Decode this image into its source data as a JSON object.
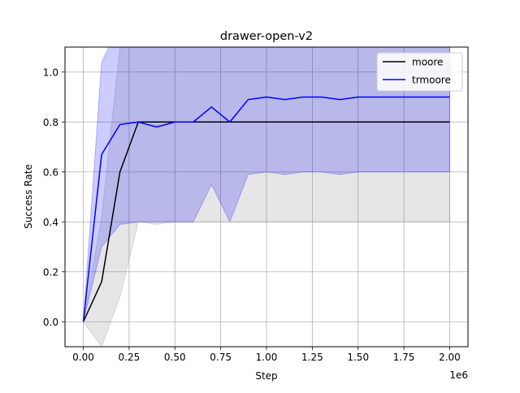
{
  "chart_data": {
    "type": "line",
    "title": "drawer-open-v2",
    "xlabel": "Step",
    "ylabel": "Success Rate",
    "x_offset_text": "1e6",
    "xlim": [
      -0.1,
      2.1
    ],
    "ylim": [
      -0.1,
      1.1
    ],
    "grid": true,
    "legend_position": "top-right",
    "x_ticks": [
      0.0,
      0.25,
      0.5,
      0.75,
      1.0,
      1.25,
      1.5,
      1.75,
      2.0
    ],
    "x_tick_labels": [
      "0.00",
      "0.25",
      "0.50",
      "0.75",
      "1.00",
      "1.25",
      "1.50",
      "1.75",
      "2.00"
    ],
    "y_ticks": [
      0.0,
      0.2,
      0.4,
      0.6,
      0.8,
      1.0
    ],
    "y_tick_labels": [
      "0.0",
      "0.2",
      "0.4",
      "0.6",
      "0.8",
      "1.0"
    ],
    "x": [
      0,
      0.1,
      0.2,
      0.3,
      0.4,
      0.5,
      0.6,
      0.7,
      0.8,
      0.9,
      1.0,
      1.1,
      1.2,
      1.3,
      1.4,
      1.5,
      1.6,
      1.7,
      1.8,
      1.9,
      2.0
    ],
    "series": [
      {
        "name": "moore",
        "color": "#000000",
        "band_color": "#808080",
        "values": [
          0.0,
          0.16,
          0.6,
          0.8,
          0.8,
          0.8,
          0.8,
          0.8,
          0.8,
          0.8,
          0.8,
          0.8,
          0.8,
          0.8,
          0.8,
          0.8,
          0.8,
          0.8,
          0.8,
          0.8,
          0.8
        ],
        "lower": [
          0.0,
          -0.1,
          0.1,
          0.4,
          0.39,
          0.4,
          0.4,
          0.4,
          0.4,
          0.4,
          0.4,
          0.4,
          0.4,
          0.4,
          0.4,
          0.4,
          0.4,
          0.4,
          0.4,
          0.4,
          0.4
        ],
        "upper": [
          0.0,
          0.42,
          1.1,
          1.2,
          1.2,
          1.2,
          1.2,
          1.2,
          1.2,
          1.2,
          1.2,
          1.2,
          1.2,
          1.2,
          1.2,
          1.2,
          1.2,
          1.2,
          1.2,
          1.2,
          1.2
        ]
      },
      {
        "name": "trmoore",
        "color": "#0000ff",
        "band_color": "#0000ff",
        "values": [
          0.0,
          0.67,
          0.79,
          0.8,
          0.78,
          0.8,
          0.8,
          0.86,
          0.8,
          0.89,
          0.9,
          0.89,
          0.9,
          0.9,
          0.89,
          0.9,
          0.9,
          0.9,
          0.9,
          0.9,
          0.9
        ],
        "lower": [
          0.0,
          0.3,
          0.39,
          0.4,
          0.4,
          0.4,
          0.4,
          0.55,
          0.4,
          0.59,
          0.6,
          0.59,
          0.6,
          0.6,
          0.59,
          0.6,
          0.6,
          0.6,
          0.6,
          0.6,
          0.6
        ],
        "upper": [
          0.0,
          1.04,
          1.19,
          1.2,
          1.16,
          1.2,
          1.2,
          1.17,
          1.2,
          1.19,
          1.2,
          1.19,
          1.2,
          1.2,
          1.19,
          1.2,
          1.2,
          1.2,
          1.2,
          1.2,
          1.2
        ]
      }
    ]
  }
}
